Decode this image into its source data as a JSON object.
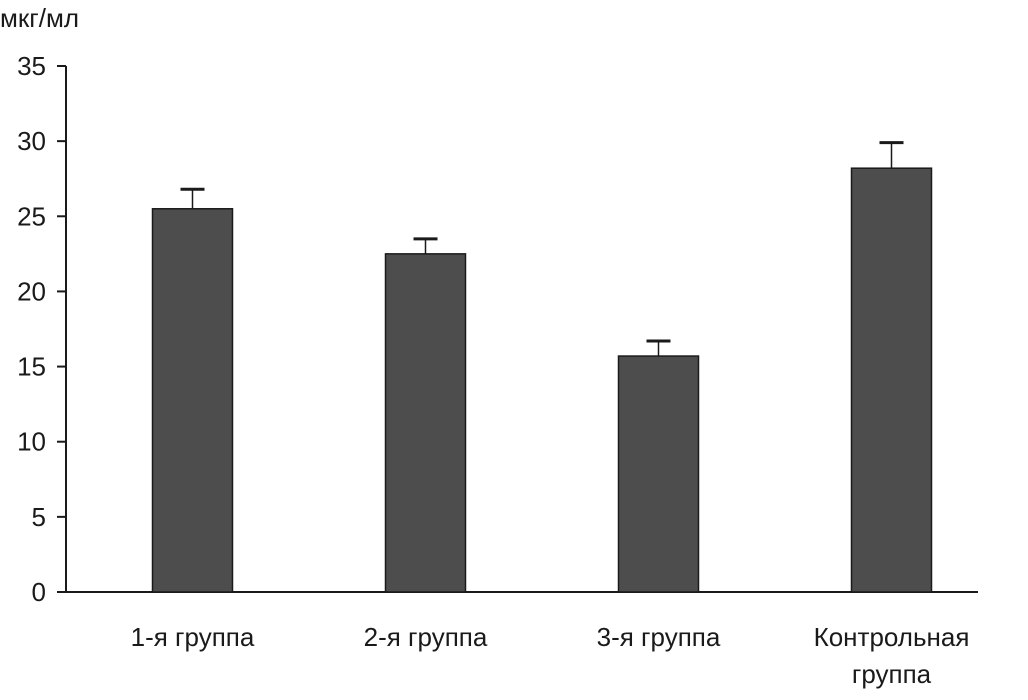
{
  "chart_data": {
    "type": "bar",
    "title": "",
    "xlabel": "",
    "ylabel": "мкг/мл",
    "ylim": [
      0,
      35
    ],
    "yticks": [
      0,
      5,
      10,
      15,
      20,
      25,
      30,
      35
    ],
    "categories": [
      [
        "1-я группа"
      ],
      [
        "2-я группа"
      ],
      [
        "3-я группа"
      ],
      [
        "Контрольная",
        "группа"
      ]
    ],
    "series": [
      {
        "values": [
          25.5,
          22.5,
          15.7,
          28.2
        ],
        "error": [
          1.3,
          1.0,
          1.0,
          1.7
        ]
      }
    ],
    "grid": false,
    "legend": "none",
    "colors": {
      "bar_fill": "#4d4d4d",
      "bar_stroke": "#1a1a1a",
      "axis": "#1a1a1a"
    }
  }
}
